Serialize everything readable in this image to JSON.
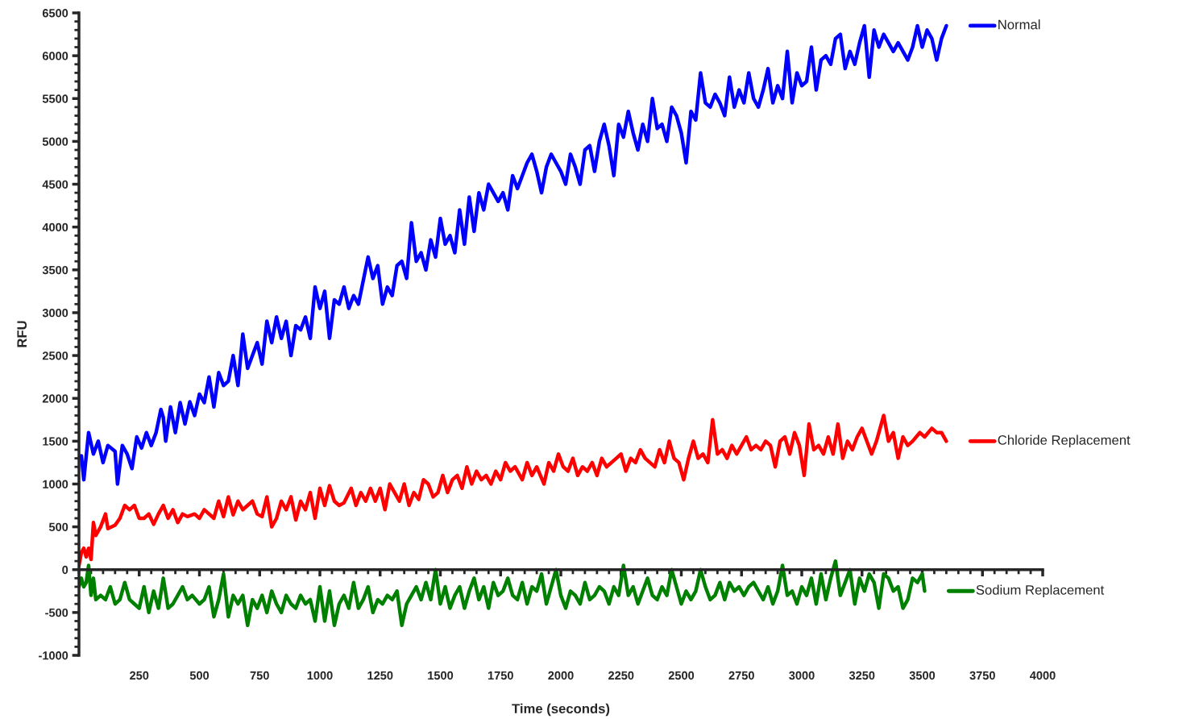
{
  "chart_data": {
    "type": "line",
    "xlabel": "Time (seconds)",
    "ylabel": "RFU",
    "legend": "right",
    "marker": "none",
    "line_style": "solid",
    "xlim": [
      0,
      4000
    ],
    "xticks": [
      250,
      500,
      750,
      1000,
      1250,
      1500,
      1750,
      2000,
      2250,
      2500,
      2750,
      3000,
      3250,
      3500,
      3750,
      4000
    ],
    "ylim": [
      -1000,
      6500
    ],
    "yticks": [
      -1000,
      -500,
      0,
      500,
      1000,
      1500,
      2000,
      2500,
      3000,
      3500,
      4000,
      4500,
      5000,
      5500,
      6000,
      6500
    ],
    "series": [
      {
        "name": "Normal",
        "color": "#0000ff",
        "x": [
          10,
          20,
          40,
          60,
          80,
          100,
          120,
          150,
          160,
          180,
          200,
          220,
          240,
          260,
          280,
          300,
          320,
          340,
          350,
          360,
          380,
          400,
          420,
          440,
          460,
          480,
          500,
          520,
          540,
          560,
          580,
          600,
          620,
          640,
          660,
          680,
          700,
          720,
          740,
          760,
          780,
          800,
          820,
          840,
          860,
          880,
          900,
          920,
          940,
          960,
          980,
          1000,
          1020,
          1040,
          1060,
          1080,
          1100,
          1120,
          1140,
          1160,
          1200,
          1220,
          1240,
          1260,
          1280,
          1300,
          1320,
          1340,
          1360,
          1380,
          1400,
          1420,
          1440,
          1460,
          1480,
          1500,
          1520,
          1540,
          1560,
          1580,
          1600,
          1620,
          1640,
          1660,
          1680,
          1700,
          1720,
          1740,
          1760,
          1780,
          1800,
          1820,
          1840,
          1860,
          1880,
          1900,
          1920,
          1940,
          1960,
          1980,
          2000,
          2020,
          2040,
          2060,
          2080,
          2100,
          2120,
          2140,
          2160,
          2180,
          2200,
          2220,
          2240,
          2260,
          2280,
          2300,
          2320,
          2340,
          2360,
          2380,
          2400,
          2420,
          2440,
          2460,
          2480,
          2500,
          2520,
          2540,
          2560,
          2580,
          2600,
          2620,
          2640,
          2660,
          2680,
          2700,
          2720,
          2740,
          2760,
          2780,
          2800,
          2820,
          2840,
          2860,
          2880,
          2900,
          2920,
          2940,
          2960,
          2980,
          3000,
          3020,
          3040,
          3060,
          3080,
          3100,
          3120,
          3140,
          3160,
          3180,
          3200,
          3220,
          3240,
          3260,
          3280,
          3300,
          3320,
          3340,
          3360,
          3380,
          3400,
          3440,
          3460,
          3480,
          3500,
          3520,
          3540,
          3560,
          3580,
          3600
        ],
        "values": [
          1330,
          1050,
          1600,
          1350,
          1500,
          1250,
          1450,
          1380,
          1000,
          1450,
          1350,
          1180,
          1550,
          1420,
          1600,
          1450,
          1600,
          1870,
          1780,
          1500,
          1900,
          1600,
          1950,
          1700,
          1960,
          1800,
          2050,
          1950,
          2250,
          1900,
          2300,
          2150,
          2200,
          2500,
          2150,
          2750,
          2350,
          2500,
          2650,
          2400,
          2900,
          2650,
          2950,
          2700,
          2900,
          2500,
          2850,
          2800,
          2950,
          2700,
          3300,
          3050,
          3250,
          2700,
          3150,
          3100,
          3300,
          3050,
          3200,
          3100,
          3650,
          3400,
          3550,
          3100,
          3300,
          3200,
          3550,
          3600,
          3400,
          4050,
          3600,
          3700,
          3500,
          3850,
          3650,
          4100,
          3800,
          3900,
          3700,
          4200,
          3800,
          4350,
          3950,
          4400,
          4200,
          4500,
          4400,
          4300,
          4400,
          4200,
          4600,
          4450,
          4600,
          4750,
          4850,
          4650,
          4400,
          4700,
          4850,
          4750,
          4650,
          4500,
          4850,
          4700,
          4500,
          4900,
          4950,
          4650,
          5000,
          5200,
          4950,
          4600,
          5200,
          5050,
          5350,
          5100,
          4900,
          5200,
          5000,
          5500,
          5150,
          5200,
          5000,
          5400,
          5300,
          5100,
          4750,
          5350,
          5250,
          5800,
          5450,
          5400,
          5550,
          5450,
          5300,
          5750,
          5400,
          5600,
          5450,
          5800,
          5500,
          5400,
          5600,
          5850,
          5450,
          5650,
          5500,
          6050,
          5450,
          5800,
          5650,
          5700,
          6100,
          5600,
          5950,
          6000,
          5900,
          6200,
          6250,
          5850,
          6050,
          5900,
          6150,
          6350,
          5750,
          6300,
          6100,
          6250,
          6150,
          6050,
          6150,
          5950,
          6100,
          6350,
          6100,
          6300,
          6200,
          5950,
          6200,
          6350
        ]
      },
      {
        "name": "Chloride Replacement",
        "color": "#ff0000",
        "x": [
          0,
          10,
          20,
          30,
          40,
          50,
          60,
          70,
          90,
          110,
          120,
          150,
          170,
          190,
          210,
          230,
          250,
          270,
          290,
          310,
          330,
          350,
          370,
          390,
          410,
          430,
          450,
          480,
          500,
          520,
          540,
          560,
          580,
          600,
          620,
          640,
          660,
          680,
          700,
          720,
          740,
          760,
          780,
          800,
          820,
          840,
          860,
          880,
          900,
          920,
          940,
          960,
          980,
          1000,
          1020,
          1040,
          1060,
          1080,
          1100,
          1130,
          1150,
          1170,
          1190,
          1210,
          1230,
          1250,
          1270,
          1290,
          1310,
          1330,
          1350,
          1370,
          1390,
          1410,
          1430,
          1450,
          1470,
          1490,
          1510,
          1530,
          1550,
          1570,
          1590,
          1610,
          1630,
          1650,
          1670,
          1690,
          1710,
          1730,
          1750,
          1770,
          1790,
          1810,
          1840,
          1860,
          1880,
          1900,
          1930,
          1950,
          1970,
          1990,
          2010,
          2030,
          2050,
          2070,
          2090,
          2110,
          2130,
          2150,
          2170,
          2190,
          2210,
          2230,
          2250,
          2270,
          2290,
          2310,
          2330,
          2350,
          2370,
          2390,
          2410,
          2430,
          2450,
          2470,
          2490,
          2510,
          2530,
          2550,
          2570,
          2590,
          2610,
          2630,
          2650,
          2670,
          2690,
          2710,
          2730,
          2750,
          2770,
          2790,
          2810,
          2830,
          2850,
          2870,
          2890,
          2910,
          2930,
          2950,
          2970,
          2990,
          3010,
          3030,
          3050,
          3070,
          3090,
          3110,
          3130,
          3150,
          3170,
          3190,
          3210,
          3230,
          3250,
          3270,
          3290,
          3310,
          3340,
          3360,
          3380,
          3400,
          3420,
          3440,
          3460,
          3490,
          3510,
          3540,
          3560,
          3580,
          3600
        ],
        "values": [
          50,
          200,
          250,
          150,
          250,
          120,
          550,
          400,
          500,
          650,
          480,
          520,
          600,
          750,
          700,
          750,
          600,
          600,
          650,
          530,
          650,
          750,
          600,
          700,
          550,
          650,
          620,
          650,
          600,
          700,
          650,
          600,
          800,
          620,
          850,
          640,
          800,
          700,
          750,
          800,
          650,
          620,
          850,
          500,
          600,
          800,
          700,
          850,
          580,
          800,
          700,
          900,
          600,
          950,
          750,
          980,
          800,
          750,
          780,
          950,
          750,
          900,
          800,
          950,
          800,
          950,
          700,
          1000,
          900,
          800,
          1000,
          750,
          900,
          820,
          1050,
          1000,
          850,
          900,
          1100,
          900,
          1050,
          1100,
          950,
          1200,
          1000,
          1150,
          1050,
          1100,
          1000,
          1150,
          1050,
          1250,
          1150,
          1200,
          1050,
          1250,
          1100,
          1200,
          1000,
          1250,
          1150,
          1350,
          1200,
          1150,
          1300,
          1100,
          1200,
          1150,
          1250,
          1100,
          1300,
          1200,
          1250,
          1300,
          1350,
          1150,
          1300,
          1250,
          1400,
          1300,
          1250,
          1200,
          1400,
          1250,
          1500,
          1300,
          1250,
          1050,
          1300,
          1500,
          1300,
          1350,
          1250,
          1750,
          1350,
          1400,
          1300,
          1450,
          1350,
          1450,
          1550,
          1400,
          1450,
          1400,
          1500,
          1450,
          1200,
          1500,
          1550,
          1350,
          1600,
          1450,
          1100,
          1700,
          1400,
          1450,
          1350,
          1550,
          1350,
          1700,
          1300,
          1500,
          1400,
          1550,
          1650,
          1500,
          1350,
          1500,
          1800,
          1500,
          1600,
          1300,
          1550,
          1450,
          1500,
          1600,
          1550,
          1650,
          1600,
          1600,
          1500
        ]
      },
      {
        "name": "Sodium Replacement",
        "color": "#008000",
        "x": [
          0,
          10,
          20,
          30,
          40,
          50,
          60,
          70,
          90,
          110,
          130,
          150,
          170,
          190,
          210,
          230,
          250,
          270,
          290,
          310,
          330,
          350,
          370,
          390,
          410,
          430,
          450,
          470,
          500,
          520,
          540,
          560,
          580,
          600,
          620,
          640,
          660,
          680,
          700,
          720,
          740,
          760,
          780,
          800,
          820,
          840,
          860,
          880,
          900,
          920,
          940,
          960,
          980,
          1000,
          1020,
          1040,
          1060,
          1080,
          1100,
          1120,
          1140,
          1160,
          1180,
          1200,
          1220,
          1240,
          1260,
          1280,
          1300,
          1320,
          1340,
          1360,
          1380,
          1400,
          1420,
          1440,
          1460,
          1480,
          1500,
          1520,
          1540,
          1560,
          1580,
          1600,
          1620,
          1640,
          1660,
          1680,
          1700,
          1720,
          1740,
          1760,
          1780,
          1800,
          1820,
          1840,
          1860,
          1880,
          1900,
          1920,
          1940,
          1960,
          1980,
          2000,
          2020,
          2040,
          2060,
          2080,
          2100,
          2120,
          2140,
          2160,
          2180,
          2200,
          2220,
          2240,
          2260,
          2280,
          2300,
          2320,
          2340,
          2360,
          2380,
          2400,
          2420,
          2440,
          2460,
          2480,
          2500,
          2520,
          2540,
          2560,
          2580,
          2600,
          2620,
          2640,
          2660,
          2680,
          2700,
          2720,
          2740,
          2760,
          2780,
          2800,
          2820,
          2840,
          2860,
          2880,
          2900,
          2920,
          2940,
          2960,
          2980,
          3000,
          3020,
          3040,
          3060,
          3080,
          3100,
          3120,
          3140,
          3160,
          3180,
          3200,
          3220,
          3240,
          3260,
          3280,
          3300,
          3320,
          3340,
          3360,
          3380,
          3400,
          3420,
          3440,
          3460,
          3480,
          3500,
          3510
        ],
        "values": [
          -200,
          -100,
          -200,
          -150,
          50,
          -300,
          -100,
          -350,
          -300,
          -350,
          -200,
          -400,
          -350,
          -150,
          -350,
          -400,
          -450,
          -200,
          -500,
          -250,
          -450,
          -100,
          -450,
          -400,
          -300,
          -200,
          -350,
          -300,
          -400,
          -350,
          -200,
          -550,
          -350,
          -50,
          -550,
          -300,
          -400,
          -300,
          -650,
          -350,
          -450,
          -300,
          -500,
          -250,
          -400,
          -500,
          -300,
          -400,
          -450,
          -300,
          -400,
          -350,
          -600,
          -200,
          -600,
          -250,
          -650,
          -400,
          -300,
          -450,
          -150,
          -450,
          -350,
          -200,
          -500,
          -350,
          -400,
          -300,
          -350,
          -250,
          -650,
          -400,
          -300,
          -200,
          -350,
          -150,
          -350,
          0,
          -400,
          -200,
          -450,
          -300,
          -200,
          -450,
          -250,
          -100,
          -350,
          -200,
          -450,
          -150,
          -300,
          -250,
          -100,
          -300,
          -350,
          -150,
          -400,
          -200,
          -250,
          -50,
          -400,
          -200,
          0,
          -300,
          -450,
          -250,
          -300,
          -400,
          -150,
          -350,
          -300,
          -200,
          -250,
          -400,
          -200,
          -300,
          50,
          -300,
          -200,
          -400,
          -250,
          -100,
          -300,
          -350,
          -200,
          -300,
          0,
          -200,
          -400,
          -250,
          -350,
          -250,
          0,
          -200,
          -350,
          -300,
          -150,
          -350,
          -150,
          -250,
          -200,
          -300,
          -200,
          -150,
          -250,
          -350,
          -200,
          -400,
          -250,
          50,
          -300,
          -250,
          -400,
          -200,
          -300,
          -100,
          -400,
          -50,
          -350,
          -100,
          100,
          -300,
          -150,
          0,
          -400,
          -100,
          -250,
          -50,
          -150,
          -450,
          -50,
          -100,
          -250,
          -200,
          -450,
          -350,
          -100,
          -150,
          -50,
          -250
        ]
      }
    ]
  }
}
